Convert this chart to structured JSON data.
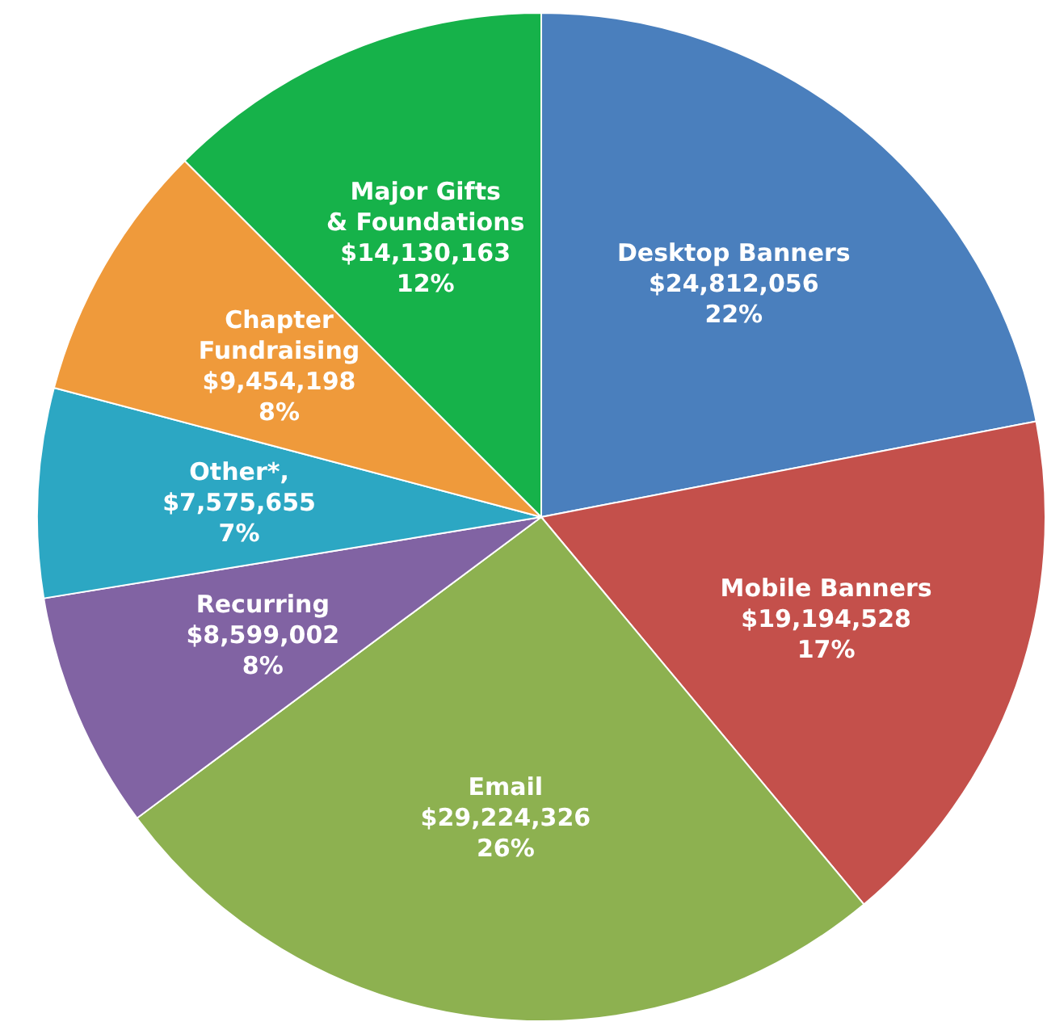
{
  "chart_data": {
    "type": "pie",
    "categories": [
      "Desktop Banners",
      "Mobile Banners",
      "Email",
      "Recurring",
      "Other*",
      "Chapter\nFundraising",
      "Major Gifts\n& Foundations"
    ],
    "values": [
      24812056,
      19194528,
      29224326,
      8599002,
      7575655,
      9454198,
      14130163
    ],
    "value_labels": [
      "$24,812,056\n22%",
      "$19,194,528\n17%",
      "$29,224,326\n26%",
      "$8,599,002\n8%",
      ",\n$7,575,655\n7%",
      "$9,454,198\n8%",
      "$14,130,163\n12%"
    ],
    "colors": [
      "#4a7fbd",
      "#c4504b",
      "#8db150",
      "#8163a3",
      "#2ca7c3",
      "#ef9a3b",
      "#16b24a"
    ]
  }
}
